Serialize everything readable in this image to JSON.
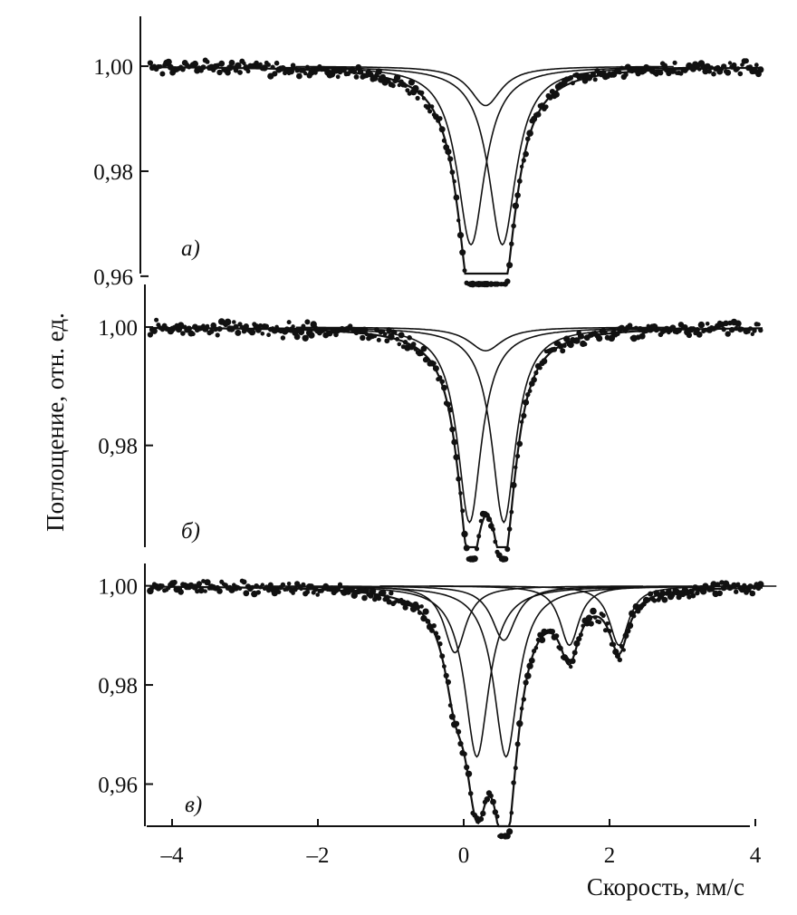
{
  "chart_data": {
    "type": "scatter",
    "xlabel": "Скорость, мм/с",
    "ylabel": "Поглощение, отн. ед.",
    "xlim": [
      -4.5,
      4.3
    ],
    "x_ticks": [
      {
        "value": -4,
        "label": "–4"
      },
      {
        "value": -2,
        "label": "–2"
      },
      {
        "value": 0,
        "label": "0"
      },
      {
        "value": 2,
        "label": "2"
      },
      {
        "value": 4,
        "label": "4"
      }
    ],
    "panels": [
      {
        "label": "а)",
        "ylim": [
          0.9605,
          1.0095
        ],
        "y_ticks": [
          {
            "value": 1.0,
            "label": "1,00"
          },
          {
            "value": 0.98,
            "label": "0,98"
          },
          {
            "value": 0.96,
            "label": "0,96"
          }
        ],
        "components": [
          {
            "center": 0.3,
            "depth": 0.0075,
            "hwhm": 0.26
          },
          {
            "center": 0.1,
            "depth": 0.034,
            "hwhm": 0.23
          },
          {
            "center": 0.53,
            "depth": 0.034,
            "hwhm": 0.23
          }
        ],
        "fit_dip": {
          "center": 0.32,
          "depth": 0.0405,
          "hwhm": 0.6
        }
      },
      {
        "label": "б)",
        "ylim": [
          0.9628,
          1.0072
        ],
        "y_ticks": [
          {
            "value": 1.0,
            "label": "1,00"
          },
          {
            "value": 0.98,
            "label": "0,98"
          }
        ],
        "components": [
          {
            "center": 0.3,
            "depth": 0.004,
            "hwhm": 0.28
          },
          {
            "center": 0.08,
            "depth": 0.033,
            "hwhm": 0.2
          },
          {
            "center": 0.55,
            "depth": 0.033,
            "hwhm": 0.2
          }
        ],
        "fit_dip": {
          "center": 0.31,
          "depth": 0.036,
          "hwhm": 0.55
        }
      },
      {
        "label": "в)",
        "ylim": [
          0.9515,
          1.0045
        ],
        "y_ticks": [
          {
            "value": 1.0,
            "label": "1,00"
          },
          {
            "value": 0.98,
            "label": "0,98"
          },
          {
            "value": 0.96,
            "label": "0,96"
          }
        ],
        "components": [
          {
            "center": -0.12,
            "depth": 0.0135,
            "hwhm": 0.18
          },
          {
            "center": 0.55,
            "depth": 0.011,
            "hwhm": 0.2
          },
          {
            "center": 1.45,
            "depth": 0.012,
            "hwhm": 0.16
          },
          {
            "center": 2.13,
            "depth": 0.012,
            "hwhm": 0.16
          },
          {
            "center": 0.18,
            "depth": 0.0345,
            "hwhm": 0.2
          },
          {
            "center": 0.58,
            "depth": 0.0345,
            "hwhm": 0.2
          }
        ],
        "fit_dip": {
          "center": 0.38,
          "depth": 0.043,
          "hwhm": 0.55
        }
      }
    ]
  }
}
